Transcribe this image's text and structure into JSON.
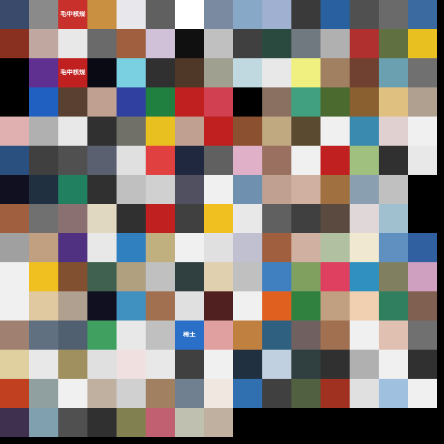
{
  "mosaic": {
    "columns": 15,
    "tiles": [
      {
        "c": "#3a4a6a"
      },
      {
        "c": "#8a8a8a"
      },
      {
        "c": "#c8302c",
        "text": "毛中核规"
      },
      {
        "c": "#c89040"
      },
      {
        "c": "#e8e8ec"
      },
      {
        "c": "#606060"
      },
      {
        "c": "#ffffff"
      },
      {
        "c": "#7a8aa0"
      },
      {
        "c": "#88a8c8"
      },
      {
        "c": "#a0b0d0"
      },
      {
        "c": "#3a3a3a"
      },
      {
        "c": "#2860a0"
      },
      {
        "c": "#505050"
      },
      {
        "c": "#6a6a6a"
      },
      {
        "c": "#3a6aa0"
      },
      {
        "c": "#8a3020"
      },
      {
        "c": "#c0a8a0"
      },
      {
        "c": "#e8e8e8"
      },
      {
        "c": "#6a6a6a"
      },
      {
        "c": "#a06040"
      },
      {
        "c": "#d0c0d8"
      },
      {
        "c": "#101010"
      },
      {
        "c": "#c0c0c0"
      },
      {
        "c": "#404040"
      },
      {
        "c": "#2a4a40"
      },
      {
        "c": "#707880"
      },
      {
        "c": "#b0b0b0"
      },
      {
        "c": "#b03030"
      },
      {
        "c": "#607040"
      },
      {
        "c": "#e8c020"
      },
      {
        "c": "#000000"
      },
      {
        "c": "#603090"
      },
      {
        "c": "#c02020",
        "text": "毛中核规"
      },
      {
        "c": "#0a0a14"
      },
      {
        "c": "#7ad0e0"
      },
      {
        "c": "#303030"
      },
      {
        "c": "#503828"
      },
      {
        "c": "#a0a090"
      },
      {
        "c": "#c0d8e0"
      },
      {
        "c": "#e8e8e8"
      },
      {
        "c": "#f0f080"
      },
      {
        "c": "#a08060"
      },
      {
        "c": "#704030"
      },
      {
        "c": "#6aa0b0"
      },
      {
        "c": "#707070"
      },
      {
        "c": "#000000"
      },
      {
        "c": "#2060c0"
      },
      {
        "c": "#5a4030"
      },
      {
        "c": "#c0a090"
      },
      {
        "c": "#3040a0"
      },
      {
        "c": "#208040"
      },
      {
        "c": "#c02020"
      },
      {
        "c": "#d04050"
      },
      {
        "c": "#000000"
      },
      {
        "c": "#8a7060"
      },
      {
        "c": "#40a080"
      },
      {
        "c": "#4a6a30"
      },
      {
        "c": "#8a6030"
      },
      {
        "c": "#e0c080"
      },
      {
        "c": "#b0a090"
      },
      {
        "c": "#e0b0b0"
      },
      {
        "c": "#b0b0b0"
      },
      {
        "c": "#e8e8e8"
      },
      {
        "c": "#303030"
      },
      {
        "c": "#707068"
      },
      {
        "c": "#e8c020"
      },
      {
        "c": "#c0a090"
      },
      {
        "c": "#c02020"
      },
      {
        "c": "#8a5030"
      },
      {
        "c": "#c0a880"
      },
      {
        "c": "#5a4a30"
      },
      {
        "c": "#f0f0f0"
      },
      {
        "c": "#3a8ab0"
      },
      {
        "c": "#e0d0d0"
      },
      {
        "c": "#f0f0f0"
      },
      {
        "c": "#2a5080"
      },
      {
        "c": "#404040"
      },
      {
        "c": "#505050"
      },
      {
        "c": "#5a6070"
      },
      {
        "c": "#e0e0e0"
      },
      {
        "c": "#e04040"
      },
      {
        "c": "#202840"
      },
      {
        "c": "#606060"
      },
      {
        "c": "#e0b0c8"
      },
      {
        "c": "#9a7060"
      },
      {
        "c": "#f0f0f0"
      },
      {
        "c": "#c02020"
      },
      {
        "c": "#a0c080"
      },
      {
        "c": "#303030"
      },
      {
        "c": "#e8e8e8"
      },
      {
        "c": "#101020"
      },
      {
        "c": "#203040"
      },
      {
        "c": "#208060"
      },
      {
        "c": "#303030"
      },
      {
        "c": "#c0c0c0"
      },
      {
        "c": "#d0d0d0"
      },
      {
        "c": "#505060"
      },
      {
        "c": "#f0f0f0"
      },
      {
        "c": "#7090b0"
      },
      {
        "c": "#c0a090"
      },
      {
        "c": "#d0b0a0"
      },
      {
        "c": "#a07040"
      },
      {
        "c": "#8aa0b0"
      },
      {
        "c": "#c0c0c0"
      },
      {
        "c": "#000000"
      },
      {
        "c": "#a06040"
      },
      {
        "c": "#707070"
      },
      {
        "c": "#8a7070"
      },
      {
        "c": "#e0d8c0"
      },
      {
        "c": "#303030"
      },
      {
        "c": "#c02020"
      },
      {
        "c": "#404040"
      },
      {
        "c": "#f0c020"
      },
      {
        "c": "#e8e8e8"
      },
      {
        "c": "#606060"
      },
      {
        "c": "#404040"
      },
      {
        "c": "#5a4a40"
      },
      {
        "c": "#e0d8d8"
      },
      {
        "c": "#a0c0d0"
      },
      {
        "c": "#000000"
      },
      {
        "c": "#a0a0a0"
      },
      {
        "c": "#c0a080"
      },
      {
        "c": "#503080"
      },
      {
        "c": "#e8e8e8"
      },
      {
        "c": "#3080c0"
      },
      {
        "c": "#c0b080"
      },
      {
        "c": "#f0f0f0"
      },
      {
        "c": "#e0e0e0"
      },
      {
        "c": "#c0c0d0"
      },
      {
        "c": "#a06040"
      },
      {
        "c": "#d0b0a0"
      },
      {
        "c": "#b0c0a0"
      },
      {
        "c": "#f0e8d0"
      },
      {
        "c": "#6090c0"
      },
      {
        "c": "#3060a0"
      },
      {
        "c": "#f0f0f0"
      },
      {
        "c": "#f0c020"
      },
      {
        "c": "#805030"
      },
      {
        "c": "#406050"
      },
      {
        "c": "#b0a080"
      },
      {
        "c": "#c0c0c0"
      },
      {
        "c": "#304040"
      },
      {
        "c": "#e0d0b0"
      },
      {
        "c": "#c0c0c0"
      },
      {
        "c": "#4080c0"
      },
      {
        "c": "#80a060"
      },
      {
        "c": "#e04060"
      },
      {
        "c": "#3090c0"
      },
      {
        "c": "#808060"
      },
      {
        "c": "#d0a0c0"
      },
      {
        "c": "#f0f0f0"
      },
      {
        "c": "#e0c8a0"
      },
      {
        "c": "#b0a090"
      },
      {
        "c": "#101020"
      },
      {
        "c": "#4090c0"
      },
      {
        "c": "#a07050"
      },
      {
        "c": "#e0e0e0"
      },
      {
        "c": "#502020"
      },
      {
        "c": "#f0f0f0"
      },
      {
        "c": "#e06020"
      },
      {
        "c": "#308040"
      },
      {
        "c": "#c0a080"
      },
      {
        "c": "#f0d0b0"
      },
      {
        "c": "#308060"
      },
      {
        "c": "#806050"
      },
      {
        "c": "#a08070"
      },
      {
        "c": "#607080"
      },
      {
        "c": "#506070"
      },
      {
        "c": "#40a060"
      },
      {
        "c": "#e8e8e8"
      },
      {
        "c": "#c0c0c0"
      },
      {
        "c": "#2a70c8",
        "text": "稀土"
      },
      {
        "c": "#e0a0a0"
      },
      {
        "c": "#c08040"
      },
      {
        "c": "#306080"
      },
      {
        "c": "#706060"
      },
      {
        "c": "#a07050"
      },
      {
        "c": "#f0f0f0"
      },
      {
        "c": "#e0c0b0"
      },
      {
        "c": "#707070"
      },
      {
        "c": "#e0d0a0"
      },
      {
        "c": "#e8e8e8"
      },
      {
        "c": "#a09060"
      },
      {
        "c": "#e0e0e0"
      },
      {
        "c": "#f0e0e0"
      },
      {
        "c": "#e8e8e8"
      },
      {
        "c": "#404040"
      },
      {
        "c": "#f0f0f0"
      },
      {
        "c": "#203040"
      },
      {
        "c": "#c0d0e0"
      },
      {
        "c": "#304040"
      },
      {
        "c": "#303030"
      },
      {
        "c": "#b0b0b0"
      },
      {
        "c": "#f0f0f0"
      },
      {
        "c": "#303030"
      },
      {
        "c": "#c04020"
      },
      {
        "c": "#90a0a0"
      },
      {
        "c": "#f0f0f0"
      },
      {
        "c": "#c0b0a0"
      },
      {
        "c": "#d0d0d0"
      },
      {
        "c": "#a08060"
      },
      {
        "c": "#708090"
      },
      {
        "c": "#f0e8e0"
      },
      {
        "c": "#3070b0"
      },
      {
        "c": "#404040"
      },
      {
        "c": "#506040"
      },
      {
        "c": "#a03020"
      },
      {
        "c": "#e0e0e0"
      },
      {
        "c": "#a0c0e0"
      },
      {
        "c": "#f0f0f0"
      },
      {
        "c": "#403050"
      },
      {
        "c": "#80a0b0"
      },
      {
        "c": "#505050"
      },
      {
        "c": "#303030"
      },
      {
        "c": "#808050"
      },
      {
        "c": "#c06070"
      },
      {
        "c": "#c0c0b0"
      },
      {
        "c": "#c0b0a0"
      }
    ]
  }
}
